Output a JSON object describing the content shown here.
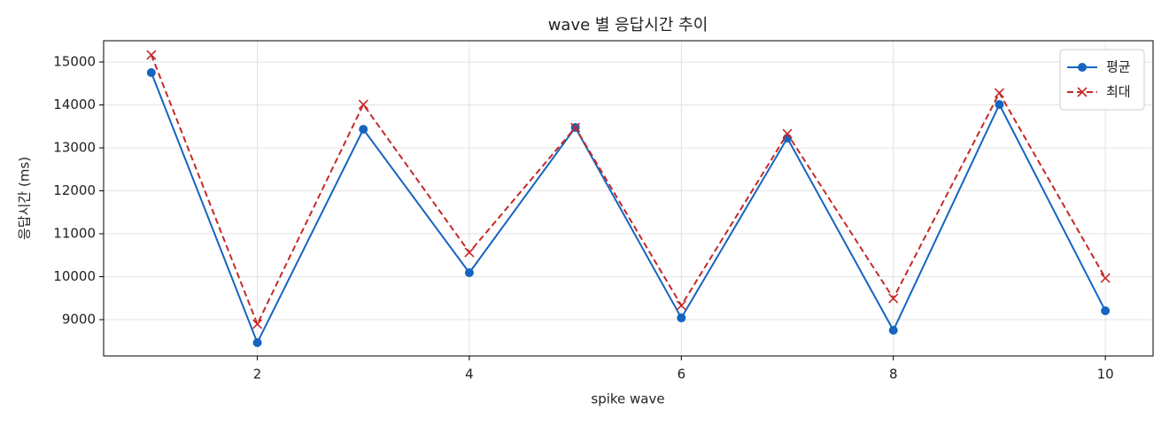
{
  "chart_data": {
    "type": "line",
    "title": "wave 별 응답시간 추이",
    "xlabel": "spike wave",
    "ylabel": "응답시간 (ms)",
    "x": [
      1,
      2,
      3,
      4,
      5,
      6,
      7,
      8,
      9,
      10
    ],
    "series": [
      {
        "name": "평균",
        "color": "#1565c0",
        "marker": "o",
        "dash": "solid",
        "values": [
          14753,
          8464,
          13433,
          10093,
          13474,
          9041,
          13227,
          8753,
          14010,
          9206
        ]
      },
      {
        "name": "최대",
        "color": "#c62828",
        "marker": "x",
        "dash": "dashed",
        "values": [
          15165,
          8897,
          14010,
          10567,
          13474,
          9330,
          13330,
          9495,
          14278,
          9969
        ]
      }
    ],
    "xlim": [
      0.55,
      10.45
    ],
    "xticks": [
      2,
      4,
      6,
      8,
      10
    ],
    "ylim": [
      8155,
      15495
    ],
    "yticks": [
      9000,
      10000,
      11000,
      12000,
      13000,
      14000,
      15000
    ],
    "grid": true,
    "legend": "upper right"
  }
}
